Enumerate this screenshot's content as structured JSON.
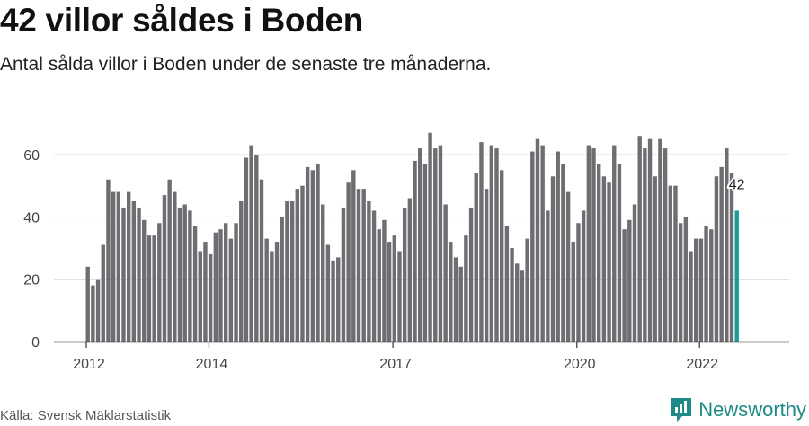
{
  "header": {
    "title": "42 villor såldes i Boden",
    "subtitle": "Antal sålda villor i Boden under de senaste tre månaderna."
  },
  "footer": {
    "source": "Källa: Svensk Mäklarstatistik",
    "brand": "Newsworthy"
  },
  "colors": {
    "bar": "#6d6d72",
    "highlight": "#1a9c9c",
    "brand": "#1f8a87",
    "grid": "#dddddd"
  },
  "chart_data": {
    "type": "bar",
    "title": "42 villor såldes i Boden",
    "subtitle": "Antal sålda villor i Boden under de senaste tre månaderna.",
    "xlabel": "",
    "ylabel": "",
    "ylim": [
      0,
      70
    ],
    "yticks": [
      0,
      20,
      40,
      60
    ],
    "xticks": [
      {
        "label": "2012",
        "index": 0
      },
      {
        "label": "2014",
        "index": 24
      },
      {
        "label": "2017",
        "index": 60
      },
      {
        "label": "2020",
        "index": 96
      },
      {
        "label": "2022",
        "index": 120
      }
    ],
    "grid": true,
    "legend": "none",
    "highlight_last": true,
    "last_label": "42",
    "values": [
      24,
      18,
      20,
      31,
      52,
      48,
      48,
      43,
      48,
      45,
      43,
      39,
      34,
      34,
      38,
      47,
      52,
      48,
      43,
      44,
      42,
      37,
      29,
      32,
      28,
      35,
      36,
      38,
      33,
      38,
      45,
      59,
      63,
      60,
      52,
      33,
      29,
      32,
      40,
      45,
      45,
      49,
      50,
      56,
      55,
      57,
      44,
      31,
      26,
      27,
      43,
      51,
      55,
      49,
      49,
      45,
      42,
      36,
      39,
      32,
      34,
      29,
      43,
      46,
      58,
      62,
      57,
      67,
      62,
      63,
      44,
      32,
      27,
      24,
      34,
      43,
      54,
      64,
      49,
      63,
      62,
      55,
      37,
      30,
      25,
      23,
      33,
      61,
      65,
      63,
      42,
      53,
      61,
      57,
      48,
      32,
      38,
      42,
      63,
      62,
      57,
      53,
      51,
      63,
      57,
      36,
      39,
      44,
      66,
      62,
      65,
      53,
      65,
      62,
      50,
      50,
      38,
      40,
      29,
      33,
      33,
      37,
      36,
      53,
      56,
      62,
      54,
      42
    ]
  }
}
